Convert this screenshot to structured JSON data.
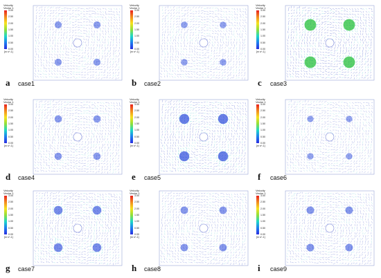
{
  "figure": {
    "legend": {
      "title_line1": "Velocity",
      "title_line2": "Vector 1",
      "ticks": [
        "3.00",
        "2.50",
        "2.00",
        "1.50",
        "1.00",
        "0.50",
        "0.00"
      ],
      "unit": "[m s^-1]",
      "colormap": [
        "#e8201e",
        "#f28a1e",
        "#f6e21e",
        "#8fe03c",
        "#1ed8c8",
        "#1e7ef0",
        "#2a2ee0"
      ]
    },
    "panels": [
      {
        "letter": "a",
        "case": "case1",
        "intensity": 0.35
      },
      {
        "letter": "b",
        "case": "case2",
        "intensity": 0.3
      },
      {
        "letter": "c",
        "case": "case3",
        "intensity": 0.9
      },
      {
        "letter": "d",
        "case": "case4",
        "intensity": 0.38
      },
      {
        "letter": "e",
        "case": "case5",
        "intensity": 0.7
      },
      {
        "letter": "f",
        "case": "case6",
        "intensity": 0.28
      },
      {
        "letter": "g",
        "case": "case7",
        "intensity": 0.55
      },
      {
        "letter": "h",
        "case": "case8",
        "intensity": 0.4
      },
      {
        "letter": "i",
        "case": "case9",
        "intensity": 0.42
      }
    ]
  }
}
